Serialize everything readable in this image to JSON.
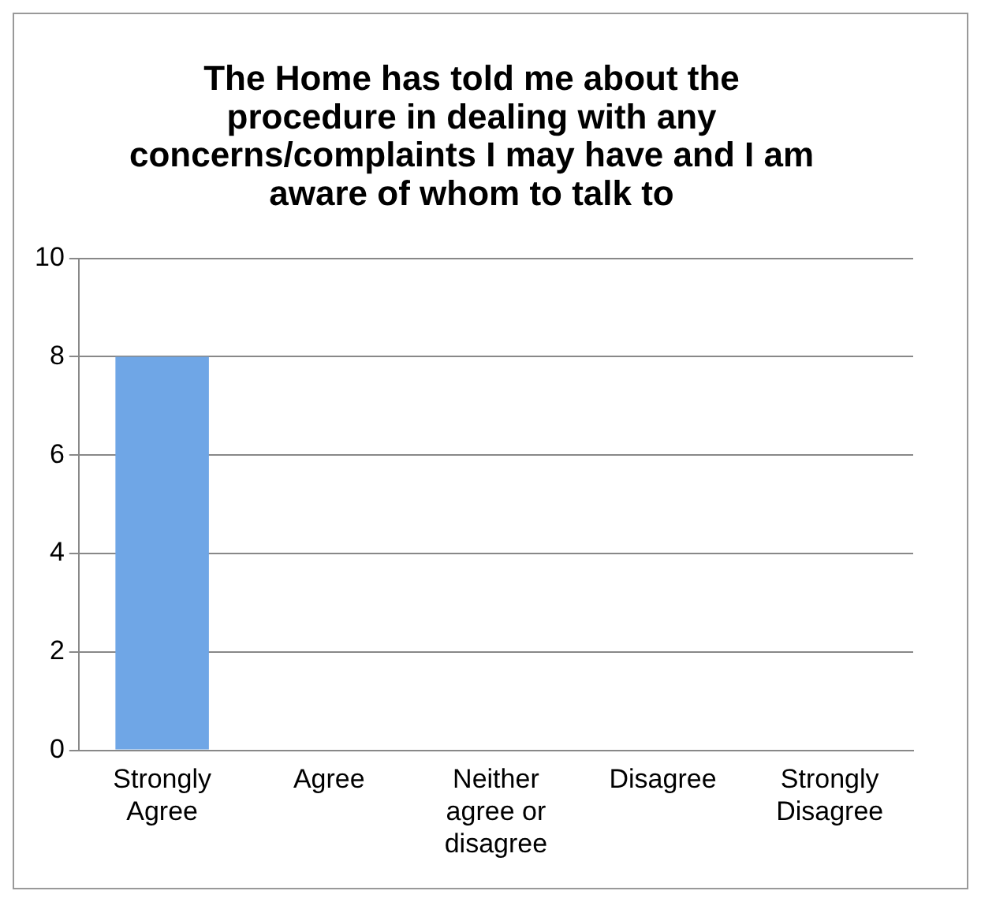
{
  "chart_data": {
    "type": "bar",
    "title": "The Home has told me about the procedure in dealing with any concerns/complaints I may have and I am aware of whom to talk to",
    "categories": [
      "Strongly Agree",
      "Agree",
      "Neither agree or disagree",
      "Disagree",
      "Strongly Disagree"
    ],
    "values": [
      8,
      0,
      0,
      0,
      0
    ],
    "color": "#6fa6e6",
    "ylim": [
      0,
      10
    ],
    "yticks": [
      0,
      2,
      4,
      6,
      8,
      10
    ],
    "grid": "y",
    "legend": false
  }
}
